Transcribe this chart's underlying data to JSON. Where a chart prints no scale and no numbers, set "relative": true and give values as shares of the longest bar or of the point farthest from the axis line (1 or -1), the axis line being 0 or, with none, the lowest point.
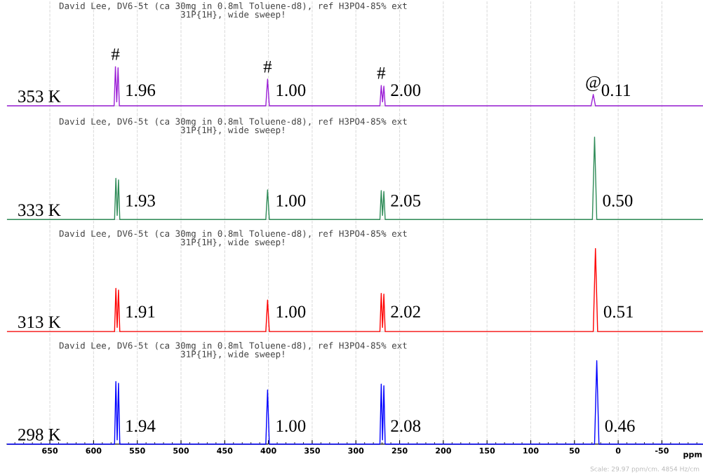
{
  "chart_data": [
    {
      "type": "line",
      "relative": true,
      "title": "David Lee, DV6-5t (ca 30mg in 0.8ml Toluene-d8), ref H3PO4-85% ext\n31P{1H}, wide sweep!",
      "xlim": [
        699,
        -97
      ],
      "xticks": [
        650,
        600,
        550,
        500,
        450,
        400,
        350,
        300,
        250,
        200,
        150,
        100,
        50,
        0,
        -50
      ],
      "tick_labels": false,
      "grid": "x",
      "marker": "none",
      "line_style": "solid",
      "series": [
        {
          "name": "353 K",
          "color": "#9b1fd6",
          "x": [
            699,
            576.5,
            575,
            573.5,
            572,
            570.5,
            403,
            401,
            399,
            272.5,
            271,
            269.5,
            268,
            266.5,
            31,
            28.5,
            26,
            -97
          ],
          "values": [
            0,
            0,
            1,
            0.1,
            0.97,
            0,
            0,
            0.68,
            0,
            0,
            0.52,
            0.1,
            0.5,
            0,
            0,
            0.29,
            0,
            0
          ]
        }
      ],
      "annotations": [
        {
          "text": "1.96",
          "x": 573,
          "y": 0.36
        },
        {
          "text": "1.00",
          "x": 401,
          "y": 0.36
        },
        {
          "text": "2.00",
          "x": 269.5,
          "y": 0.36
        },
        {
          "text": "0.11",
          "x": 28.5,
          "y": 0.36
        },
        {
          "text": "#",
          "x": 575,
          "y": 1
        },
        {
          "text": "#",
          "x": 401,
          "y": 0.68
        },
        {
          "text": "#",
          "x": 271,
          "y": 0.52
        },
        {
          "text": "@",
          "x": 28.5,
          "y": 0.29
        }
      ]
    },
    {
      "type": "line",
      "relative": true,
      "title": "David Lee, DV6-5t (ca 30mg in 0.8ml Toluene-d8), ref H3PO4-85% ext\n31P{1H}, wide sweep!",
      "xlim": [
        699,
        -97
      ],
      "xticks": [
        650,
        600,
        550,
        500,
        450,
        400,
        350,
        300,
        250,
        200,
        150,
        100,
        50,
        0,
        -50
      ],
      "tick_labels": false,
      "grid": "x",
      "marker": "none",
      "line_style": "solid",
      "series": [
        {
          "name": "333 K",
          "color": "#2e8b57",
          "x": [
            699,
            576,
            574.5,
            573,
            571.5,
            570,
            403,
            401,
            399,
            272.5,
            271,
            269.5,
            268,
            266.5,
            29.5,
            27,
            24.5,
            -97
          ],
          "values": [
            0,
            0,
            0.5,
            0.05,
            0.48,
            0,
            0,
            0.36,
            0,
            0,
            0.35,
            0.05,
            0.34,
            0,
            0,
            1,
            0,
            0
          ]
        }
      ],
      "annotations": [
        {
          "text": "1.93",
          "x": 573,
          "y": 0.21
        },
        {
          "text": "1.00",
          "x": 401,
          "y": 0.21
        },
        {
          "text": "2.05",
          "x": 269.5,
          "y": 0.21
        },
        {
          "text": "0.50",
          "x": 27,
          "y": 0.21
        }
      ]
    },
    {
      "type": "line",
      "relative": true,
      "title": "David Lee, DV6-5t (ca 30mg in 0.8ml Toluene-d8), ref H3PO4-85% ext\n31P{1H}, wide sweep!",
      "xlim": [
        699,
        -97
      ],
      "xticks": [
        650,
        600,
        550,
        500,
        450,
        400,
        350,
        300,
        250,
        200,
        150,
        100,
        50,
        0,
        -50
      ],
      "tick_labels": false,
      "grid": "x",
      "marker": "none",
      "line_style": "solid",
      "series": [
        {
          "name": "313 K",
          "color": "#ff0000",
          "x": [
            699,
            576,
            574.5,
            573,
            571.5,
            570,
            403,
            401,
            399,
            272.5,
            271,
            269.5,
            268,
            266.5,
            28.5,
            26,
            23.5,
            -97
          ],
          "values": [
            0,
            0,
            0.52,
            0.05,
            0.5,
            0,
            0,
            0.38,
            0,
            0,
            0.46,
            0.05,
            0.45,
            0,
            0,
            1,
            0,
            0
          ]
        }
      ],
      "annotations": [
        {
          "text": "1.91",
          "x": 573,
          "y": 0.22
        },
        {
          "text": "1.00",
          "x": 401,
          "y": 0.22
        },
        {
          "text": "2.02",
          "x": 269.5,
          "y": 0.22
        },
        {
          "text": "0.51",
          "x": 26,
          "y": 0.22
        }
      ]
    },
    {
      "type": "line",
      "relative": true,
      "title": "David Lee, DV6-5t (ca 30mg in 0.8ml Toluene-d8), ref H3PO4-85% ext\n31P{1H}, wide sweep!",
      "xlabel": "ppm",
      "xlim": [
        699,
        -97
      ],
      "xticks": [
        650,
        600,
        550,
        500,
        450,
        400,
        350,
        300,
        250,
        200,
        150,
        100,
        50,
        0,
        -50
      ],
      "tick_labels": "x",
      "grid": "x",
      "marker": "none",
      "line_style": "solid",
      "series": [
        {
          "name": "298 K",
          "color": "#0000ff",
          "x": [
            699,
            576,
            574.5,
            573,
            571.5,
            570,
            403,
            401,
            399,
            272.5,
            271,
            269.5,
            268,
            266.5,
            27,
            24.5,
            22,
            -97
          ],
          "values": [
            0,
            0,
            0.75,
            0.05,
            0.73,
            0,
            0,
            0.65,
            0,
            0,
            0.72,
            0.05,
            0.7,
            0,
            0,
            1,
            0,
            0
          ]
        }
      ],
      "annotations": [
        {
          "text": "1.94",
          "x": 573,
          "y": 0.2
        },
        {
          "text": "1.00",
          "x": 401,
          "y": 0.2
        },
        {
          "text": "2.08",
          "x": 269.5,
          "y": 0.2
        },
        {
          "text": "0.46",
          "x": 24.5,
          "y": 0.2
        },
        "Scale: 29.97 ppm/cm. 4854 Hz/cm"
      ]
    }
  ]
}
